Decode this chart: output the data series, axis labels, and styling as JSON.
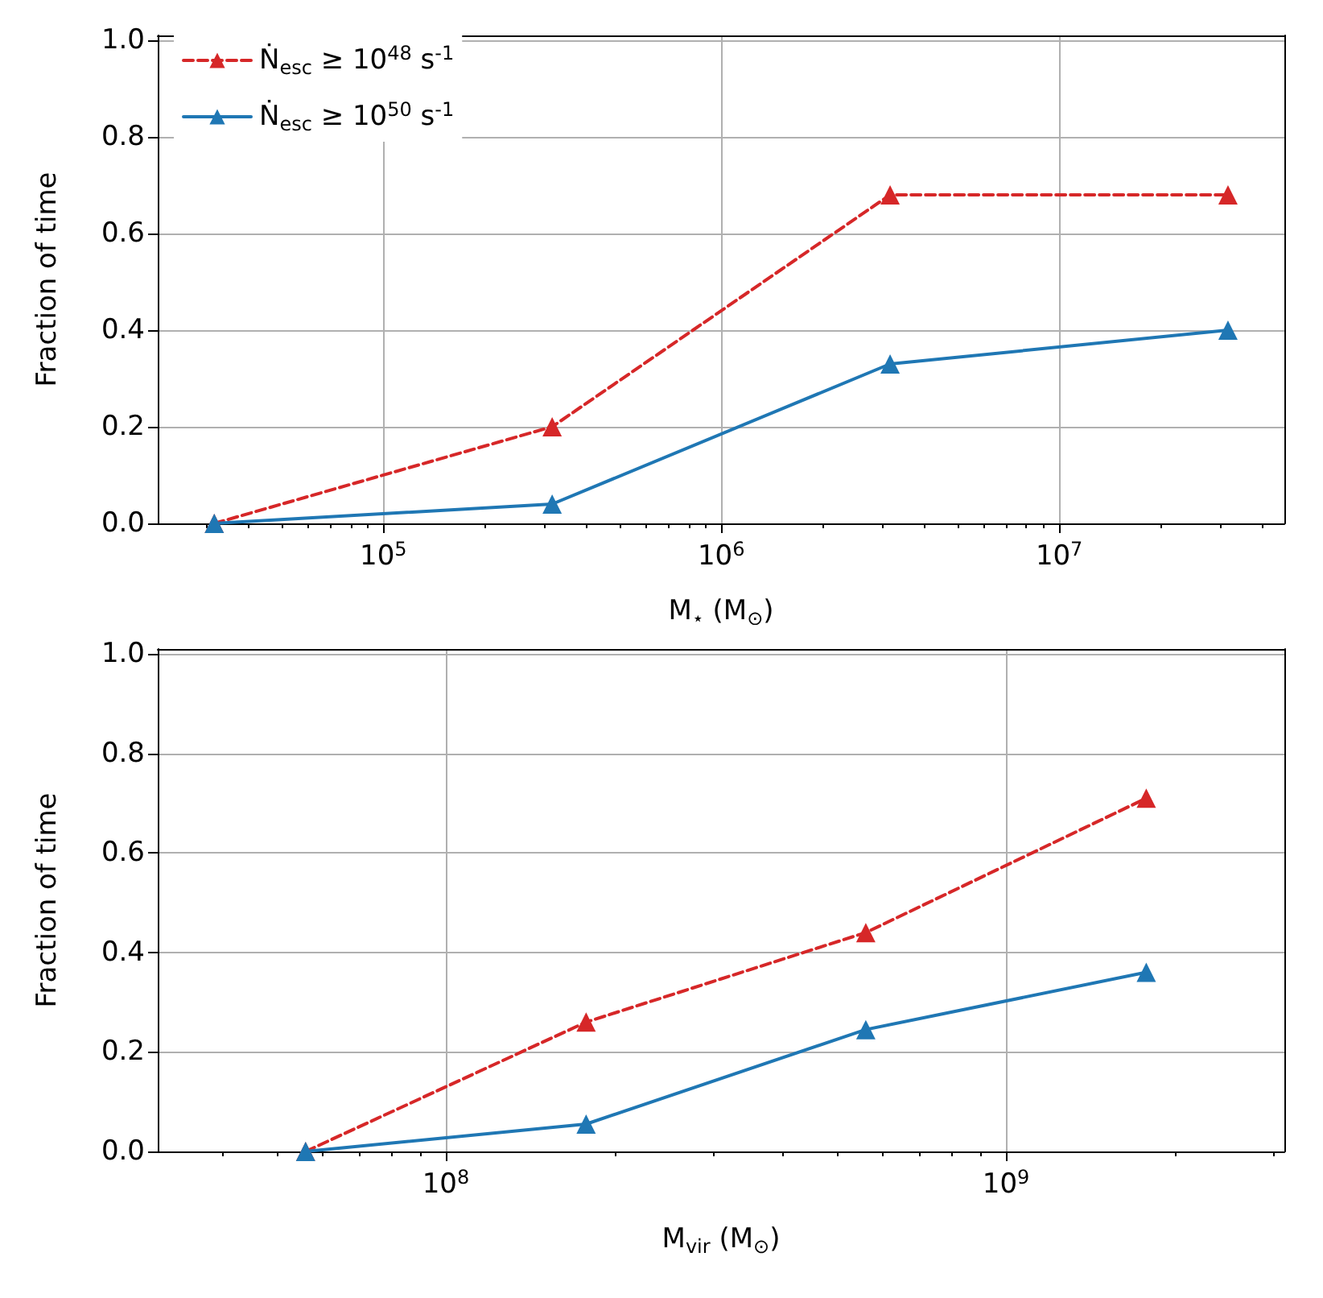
{
  "chart_data": [
    {
      "type": "line",
      "xlabel": "M$_{⋆}$ (M$_{⊙}$)",
      "ylabel": "Fraction of time",
      "log": "x",
      "grid": true,
      "legend": "top left",
      "xlim": [
        21500,
        46400000
      ],
      "ylim": [
        0,
        1.01
      ],
      "xticks": [
        {
          "value": 30000,
          "label": null
        },
        {
          "value": 40000,
          "label": null
        },
        {
          "value": 50000,
          "label": null
        },
        {
          "value": 60000,
          "label": null
        },
        {
          "value": 70000,
          "label": null
        },
        {
          "value": 80000,
          "label": null
        },
        {
          "value": 90000,
          "label": null
        },
        {
          "value": 100000,
          "label": "10$^{5}$"
        },
        {
          "value": 200000,
          "label": null
        },
        {
          "value": 300000,
          "label": null
        },
        {
          "value": 400000,
          "label": null
        },
        {
          "value": 500000,
          "label": null
        },
        {
          "value": 600000,
          "label": null
        },
        {
          "value": 700000,
          "label": null
        },
        {
          "value": 800000,
          "label": null
        },
        {
          "value": 900000,
          "label": null
        },
        {
          "value": 1000000,
          "label": "10$^{6}$"
        },
        {
          "value": 2000000,
          "label": null
        },
        {
          "value": 3000000,
          "label": null
        },
        {
          "value": 4000000,
          "label": null
        },
        {
          "value": 5000000,
          "label": null
        },
        {
          "value": 6000000,
          "label": null
        },
        {
          "value": 7000000,
          "label": null
        },
        {
          "value": 8000000,
          "label": null
        },
        {
          "value": 9000000,
          "label": null
        },
        {
          "value": 10000000,
          "label": "10$^{7}$"
        },
        {
          "value": 20000000,
          "label": null
        },
        {
          "value": 30000000,
          "label": null
        },
        {
          "value": 40000000,
          "label": null
        }
      ],
      "yticks": [
        {
          "value": 0,
          "label": "0.0"
        },
        {
          "value": 0.2,
          "label": "0.2"
        },
        {
          "value": 0.4,
          "label": "0.4"
        },
        {
          "value": 0.6,
          "label": "0.6"
        },
        {
          "value": 0.8,
          "label": "0.8"
        },
        {
          "value": 1,
          "label": "1.0"
        }
      ],
      "series": [
        {
          "name": "Ṅ$_{esc}$ ≥ 10$^{48}$ s$^{-1}$",
          "color": "#d62728",
          "line_style": "dashed",
          "marker": "triangle",
          "x": [
            31600,
            316000,
            3160000,
            31600000
          ],
          "values": [
            0,
            0.2,
            0.68,
            0.68
          ]
        },
        {
          "name": "Ṅ$_{esc}$ ≥ 10$^{50}$ s$^{-1}$",
          "color": "#1f77b4",
          "line_style": "solid",
          "marker": "triangle",
          "x": [
            31600,
            316000,
            3160000,
            31600000
          ],
          "values": [
            0,
            0.04,
            0.33,
            0.4
          ]
        }
      ]
    },
    {
      "type": "line",
      "xlabel": "M$_{vir}$ (M$_{⊙}$)",
      "ylabel": "Fraction of time",
      "log": "x",
      "grid": true,
      "xlim": [
        30600000,
        3140000000
      ],
      "ylim": [
        0,
        1.01
      ],
      "xticks": [
        {
          "value": 40000000,
          "label": null
        },
        {
          "value": 50000000,
          "label": null
        },
        {
          "value": 60000000,
          "label": null
        },
        {
          "value": 70000000,
          "label": null
        },
        {
          "value": 80000000,
          "label": null
        },
        {
          "value": 90000000,
          "label": null
        },
        {
          "value": 100000000,
          "label": "10$^{8}$"
        },
        {
          "value": 200000000,
          "label": null
        },
        {
          "value": 300000000,
          "label": null
        },
        {
          "value": 400000000,
          "label": null
        },
        {
          "value": 500000000,
          "label": null
        },
        {
          "value": 600000000,
          "label": null
        },
        {
          "value": 700000000,
          "label": null
        },
        {
          "value": 800000000,
          "label": null
        },
        {
          "value": 900000000,
          "label": null
        },
        {
          "value": 1000000000,
          "label": "10$^{9}$"
        },
        {
          "value": 2000000000,
          "label": null
        },
        {
          "value": 3000000000,
          "label": null
        }
      ],
      "yticks": [
        {
          "value": 0,
          "label": "0.0"
        },
        {
          "value": 0.2,
          "label": "0.2"
        },
        {
          "value": 0.4,
          "label": "0.4"
        },
        {
          "value": 0.6,
          "label": "0.6"
        },
        {
          "value": 0.8,
          "label": "0.8"
        },
        {
          "value": 1,
          "label": "1.0"
        }
      ],
      "series": [
        {
          "color": "#d62728",
          "line_style": "dashed",
          "marker": "triangle",
          "x": [
            56200000,
            178000000,
            562000000,
            1780000000
          ],
          "values": [
            0,
            0.26,
            0.44,
            0.71
          ]
        },
        {
          "color": "#1f77b4",
          "line_style": "solid",
          "marker": "triangle",
          "x": [
            56200000,
            178000000,
            562000000,
            1780000000
          ],
          "values": [
            0,
            0.055,
            0.245,
            0.36
          ]
        }
      ]
    }
  ]
}
